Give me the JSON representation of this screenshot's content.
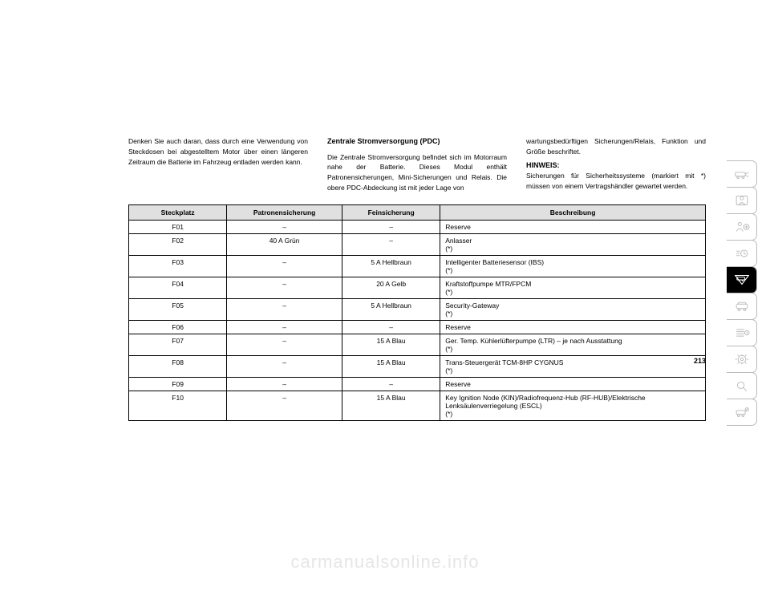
{
  "columns": {
    "left": "Denken Sie auch daran, dass durch eine Verwendung von Steckdosen bei abge­stelltem Motor über einen längeren Zeitraum die Batterie im Fahrzeug entladen werden kann.",
    "center_heading": "Zentrale Stromversorgung (PDC)",
    "center": "Die Zentrale Stromversorgung befindet sich im Motorraum nahe der Batterie. Dieses Modul enthält Patronensicherungen, Mini-Sicherungen und Relais. Die obere PDC-Abdeckung ist mit jeder Lage von",
    "right_top": "wartungsbedürftigen Sicherungen/Relais, Funktion und Größe beschriftet.",
    "hinweis_label": "HINWEIS:",
    "right_bottom": "Sicherungen für Sicherheitssysteme (markiert mit *) müssen von einem Vertrags­händler gewartet werden."
  },
  "table": {
    "headers": [
      "Steckplatz",
      "Patronensicherung",
      "Feinsicherung",
      "Beschreibung"
    ],
    "rows": [
      [
        "F01",
        "–",
        "–",
        "Reserve"
      ],
      [
        "F02",
        "40 A Grün",
        "–",
        "Anlasser\n(*)"
      ],
      [
        "F03",
        "–",
        "5 A Hellbraun",
        "Intelligenter Batteriesensor (IBS)\n(*)"
      ],
      [
        "F04",
        "–",
        "20 A Gelb",
        "Kraftstoffpumpe MTR/FPCM\n(*)"
      ],
      [
        "F05",
        "–",
        "5 A Hellbraun",
        "Security-Gateway\n(*)"
      ],
      [
        "F06",
        "–",
        "–",
        "Reserve"
      ],
      [
        "F07",
        "–",
        "15 A Blau",
        "Ger. Temp. Kühlerlüfterpumpe (LTR) – je nach Aus­stattung\n(*)"
      ],
      [
        "F08",
        "–",
        "15 A Blau",
        "Trans-Steuergerät TCM-8HP CYGNUS\n(*)"
      ],
      [
        "F09",
        "–",
        "–",
        "Reserve"
      ],
      [
        "F10",
        "–",
        "15 A Blau",
        "Key Ignition Node (KIN)/Radiofrequenz-Hub (RF-HUB)/Elektrische Lenksäulenverriegelung (ESCL)\n(*)"
      ]
    ]
  },
  "page_number": "213",
  "watermark": "carmanualsonline.info"
}
